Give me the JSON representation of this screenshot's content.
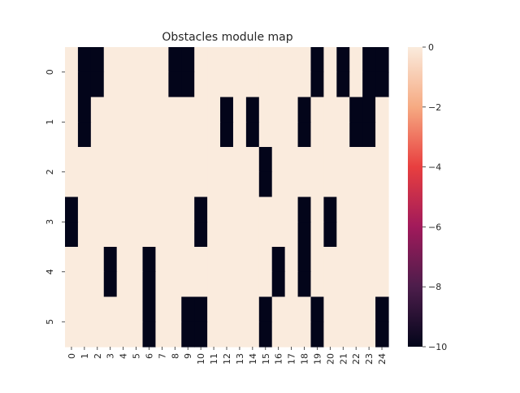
{
  "chart_data": {
    "type": "heatmap",
    "title": "Obstacles module map",
    "xlabel": "",
    "ylabel": "",
    "x_ticks": [
      "0",
      "1",
      "2",
      "3",
      "4",
      "5",
      "6",
      "7",
      "8",
      "9",
      "10",
      "11",
      "12",
      "13",
      "14",
      "15",
      "16",
      "17",
      "18",
      "19",
      "20",
      "21",
      "22",
      "23",
      "24"
    ],
    "y_ticks": [
      "0",
      "1",
      "2",
      "3",
      "4",
      "5"
    ],
    "sub_rows_per_label": 2,
    "value_range": [
      -10,
      0
    ],
    "colorbar_ticks": [
      0,
      -2,
      -4,
      -6,
      -8,
      -10
    ],
    "colorbar_tick_labels": [
      "0",
      "−2",
      "−4",
      "−6",
      "−8",
      "−10"
    ],
    "colormap": "rocket",
    "colors": {
      "zero": "#faebdd",
      "min": "#03051a"
    },
    "grid": false,
    "legend": "colorbar-right",
    "obstacle_value": -10,
    "obstacle_cells": [
      [
        0,
        1
      ],
      [
        0,
        2
      ],
      [
        0,
        8
      ],
      [
        0,
        9
      ],
      [
        0,
        19
      ],
      [
        0,
        21
      ],
      [
        0,
        23
      ],
      [
        0,
        24
      ],
      [
        1,
        1
      ],
      [
        1,
        2
      ],
      [
        1,
        8
      ],
      [
        1,
        9
      ],
      [
        1,
        19
      ],
      [
        1,
        21
      ],
      [
        1,
        23
      ],
      [
        1,
        24
      ],
      [
        2,
        1
      ],
      [
        2,
        12
      ],
      [
        2,
        14
      ],
      [
        2,
        18
      ],
      [
        2,
        22
      ],
      [
        2,
        23
      ],
      [
        3,
        1
      ],
      [
        3,
        12
      ],
      [
        3,
        14
      ],
      [
        3,
        18
      ],
      [
        3,
        22
      ],
      [
        3,
        23
      ],
      [
        4,
        15
      ],
      [
        5,
        15
      ],
      [
        6,
        0
      ],
      [
        6,
        10
      ],
      [
        6,
        18
      ],
      [
        6,
        20
      ],
      [
        7,
        0
      ],
      [
        7,
        10
      ],
      [
        7,
        18
      ],
      [
        7,
        20
      ],
      [
        8,
        3
      ],
      [
        8,
        6
      ],
      [
        8,
        16
      ],
      [
        8,
        18
      ],
      [
        9,
        3
      ],
      [
        9,
        6
      ],
      [
        9,
        16
      ],
      [
        9,
        18
      ],
      [
        10,
        6
      ],
      [
        10,
        9
      ],
      [
        10,
        10
      ],
      [
        10,
        15
      ],
      [
        10,
        19
      ],
      [
        10,
        24
      ],
      [
        11,
        6
      ],
      [
        11,
        9
      ],
      [
        11,
        10
      ],
      [
        11,
        15
      ],
      [
        11,
        19
      ],
      [
        11,
        24
      ]
    ]
  }
}
